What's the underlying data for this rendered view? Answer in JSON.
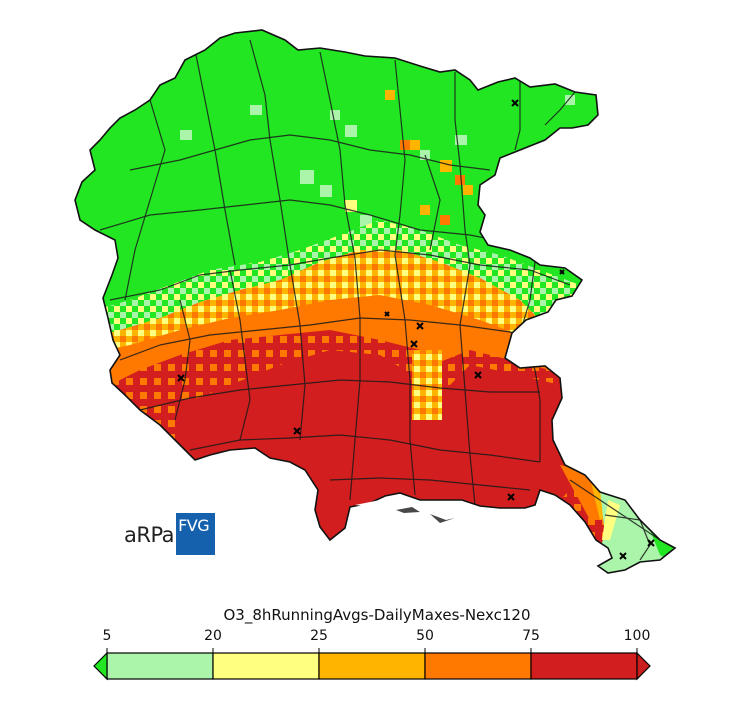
{
  "logo": {
    "part1": "aRPa",
    "part2": "FVG",
    "brand_color": "#1561ae"
  },
  "chart_data": {
    "type": "heatmap",
    "subtype": "choropleth-grid-map",
    "title": "O3_8hRunningAvgs-DailyMaxes-Nexc120",
    "region": "Friuli Venezia Giulia",
    "colorbar": {
      "ticks": [
        5,
        20,
        25,
        50,
        75,
        100
      ],
      "tick_labels": [
        "5",
        "20",
        "25",
        "50",
        "75",
        "100"
      ],
      "bins": [
        {
          "range": [
            5,
            20
          ],
          "color": "#aaf5aa"
        },
        {
          "range": [
            20,
            25
          ],
          "color": "#ffff80"
        },
        {
          "range": [
            25,
            50
          ],
          "color": "#ffb400"
        },
        {
          "range": [
            50,
            75
          ],
          "color": "#ff7800"
        },
        {
          "range": [
            75,
            100
          ],
          "color": "#d21e1e"
        }
      ],
      "under_color": "#22e622",
      "over_color": "#c81e1e",
      "extend": "both",
      "orientation": "horizontal",
      "position": "bottom"
    },
    "spatial_pattern": {
      "north_mountains": "below 5 (green)",
      "central_band": "20-50 (yellow/orange)",
      "southern_plain": "75-100 (red)",
      "trieste_karst_southeast": "5-20 (light green)"
    },
    "station_markers": 11
  }
}
